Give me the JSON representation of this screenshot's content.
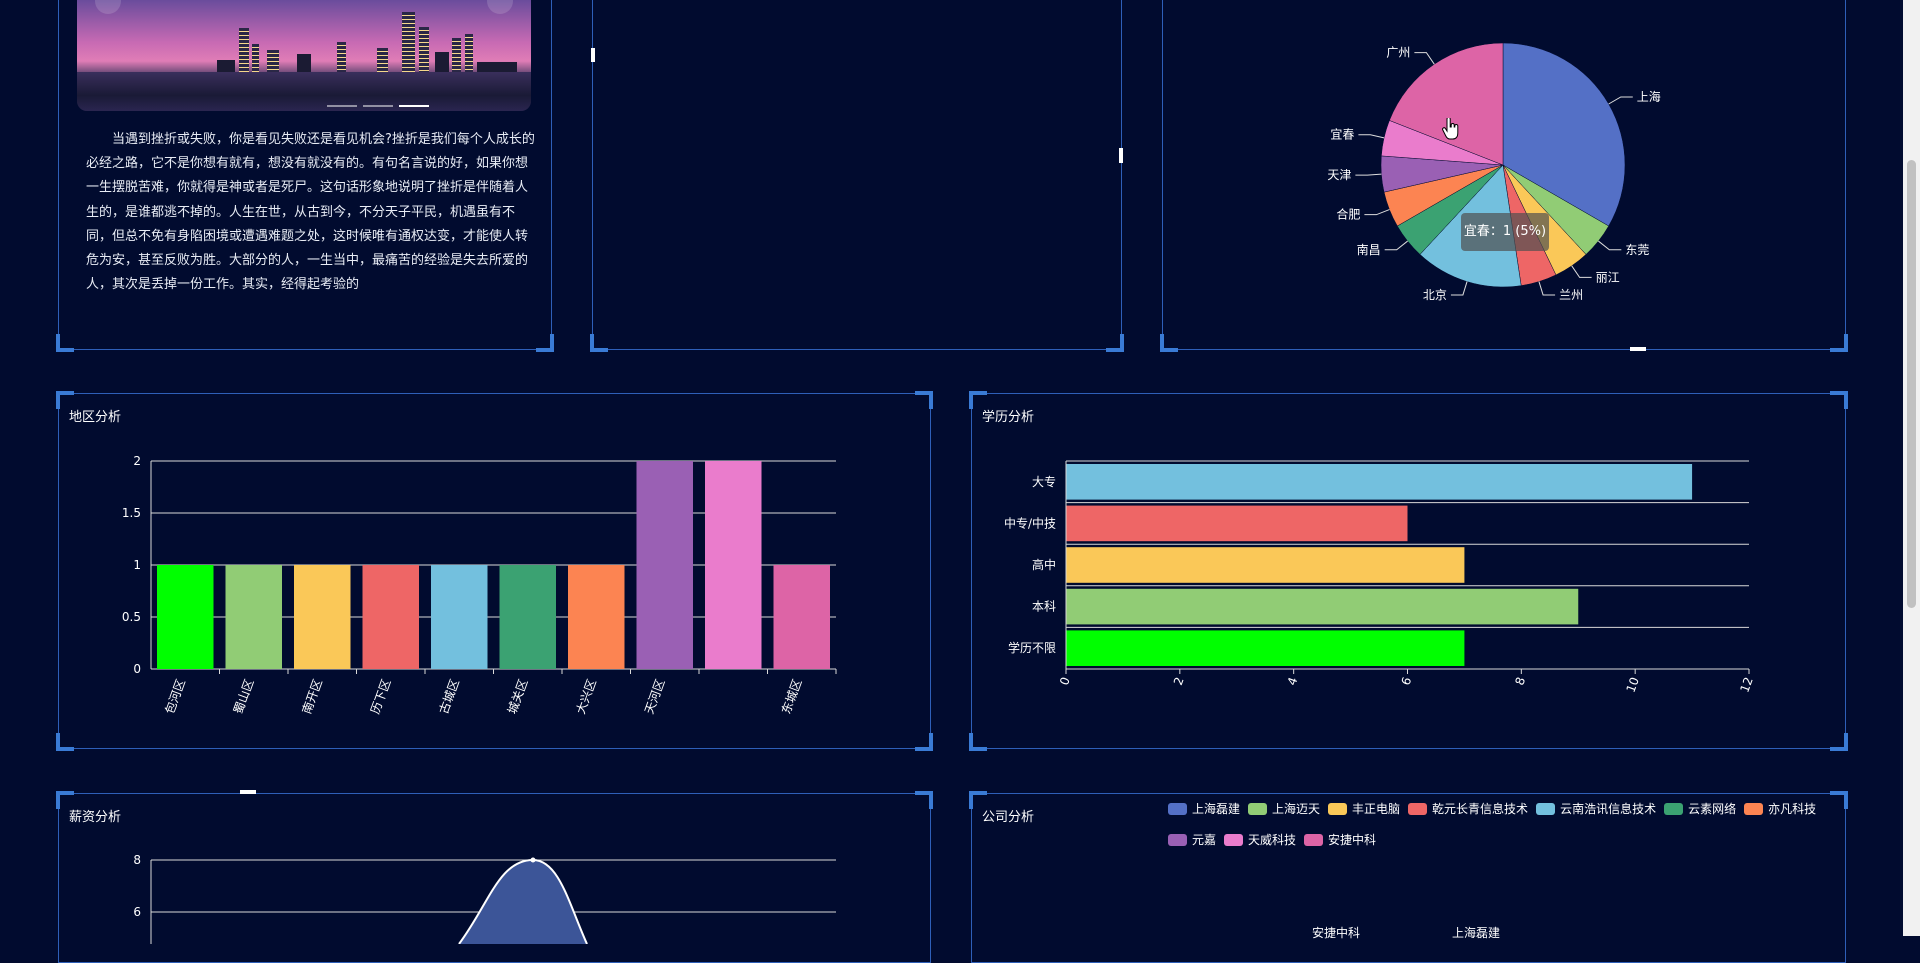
{
  "article": {
    "text": "当遇到挫折或失败，你是看见失败还是看见机会?挫折是我们每个人成长的必经之路，它不是你想有就有，想没有就没有的。有句名言说的好，如果你想一生摆脱苦难，你就得是神或者是死尸。这句话形象地说明了挫折是伴随着人生的，是谁都逃不掉的。人生在世，从古到今，不分天子平民，机遇虽有不同，但总不免有身陷困境或遭遇难题之处，这时候唯有通权达变，才能使人转危为安，甚至反败为胜。大部分的人，一生当中，最痛苦的经验是失去所爱的人，其次是丢掉一份工作。其实，经得起考验的"
  },
  "panels": {
    "region": {
      "title": "地区分析"
    },
    "education": {
      "title": "学历分析"
    },
    "salary": {
      "title": "薪资分析"
    },
    "company": {
      "title": "公司分析"
    }
  },
  "tooltip": {
    "text": "宜春：1 (5%)"
  },
  "colors": {
    "background": "#010b2f",
    "panel_border": "#2e5fb8",
    "palette": [
      "#5470c6",
      "#91cc75",
      "#fac858",
      "#ee6666",
      "#73c0de",
      "#3ba272",
      "#fc8452",
      "#9a60b4",
      "#ea7ccc"
    ]
  },
  "chart_data": [
    {
      "id": "city-pie",
      "type": "pie",
      "title": "",
      "slices": [
        {
          "name": "上海",
          "value": 7,
          "color": "#5470c6"
        },
        {
          "name": "东莞",
          "value": 1,
          "color": "#91cc75"
        },
        {
          "name": "丽江",
          "value": 1,
          "color": "#fac858"
        },
        {
          "name": "兰州",
          "value": 1,
          "color": "#ee6666"
        },
        {
          "name": "北京",
          "value": 3,
          "color": "#73c0de"
        },
        {
          "name": "南昌",
          "value": 1,
          "color": "#3ba272"
        },
        {
          "name": "合肥",
          "value": 1,
          "color": "#fc8452"
        },
        {
          "name": "天津",
          "value": 1,
          "color": "#9a60b4"
        },
        {
          "name": "宜春",
          "value": 1,
          "color": "#ea7ccc"
        },
        {
          "name": "广州",
          "value": 4,
          "color": "#dd64a6"
        }
      ]
    },
    {
      "id": "region-bar",
      "type": "bar",
      "title": "地区分析",
      "categories": [
        "包河区",
        "蜀山区",
        "南开区",
        "历下区",
        "古城区",
        "城关区",
        "大兴区",
        "天河区",
        "",
        "东城区"
      ],
      "values": [
        1,
        1,
        1,
        1,
        1,
        1,
        1,
        2,
        2,
        1
      ],
      "colors": [
        "#00ff00",
        "#91cc75",
        "#fac858",
        "#ee6666",
        "#73c0de",
        "#3ba272",
        "#fc8452",
        "#9a60b4",
        "#ea7ccc",
        "#dd64a6"
      ],
      "ylim": [
        0,
        2
      ],
      "yticks": [
        "0",
        "0.5",
        "1",
        "1.5",
        "2"
      ],
      "grid": true
    },
    {
      "id": "education-bar",
      "type": "bar",
      "orientation": "horizontal",
      "title": "学历分析",
      "categories": [
        "大专",
        "中专/中技",
        "高中",
        "本科",
        "学历不限"
      ],
      "values": [
        11,
        6,
        7,
        9,
        7
      ],
      "colors": [
        "#73c0de",
        "#ee6666",
        "#fac858",
        "#91cc75",
        "#00ff00"
      ],
      "xlim": [
        0,
        12
      ],
      "xticks": [
        "0",
        "2",
        "4",
        "6",
        "8",
        "10",
        "12"
      ],
      "grid": true
    },
    {
      "id": "salary-area",
      "type": "area",
      "title": "薪资分析",
      "yticks": [
        "6",
        "8"
      ],
      "peak_value": 8
    }
  ],
  "company_legend": [
    {
      "name": "上海磊建",
      "color": "#5470c6"
    },
    {
      "name": "上海迈天",
      "color": "#91cc75"
    },
    {
      "name": "丰正电脑",
      "color": "#fac858"
    },
    {
      "name": "乾元长青信息技术",
      "color": "#ee6666"
    },
    {
      "name": "云南浩讯信息技术",
      "color": "#73c0de"
    },
    {
      "name": "云素网络",
      "color": "#3ba272"
    },
    {
      "name": "亦凡科技",
      "color": "#fc8452"
    },
    {
      "name": "元嘉",
      "color": "#9a60b4"
    },
    {
      "name": "天威科技",
      "color": "#ea7ccc"
    },
    {
      "name": "安捷中科",
      "color": "#dd64a6"
    }
  ],
  "company_partial_labels": [
    "安捷中科",
    "上海磊建"
  ]
}
